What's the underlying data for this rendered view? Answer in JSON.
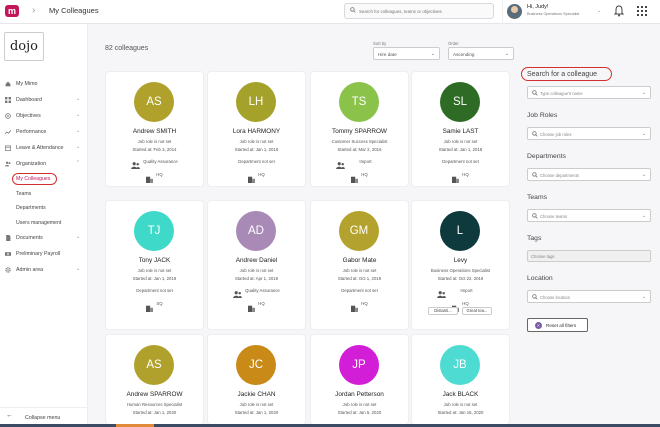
{
  "header": {
    "page_title": "My Colleagues",
    "search_placeholder": "Search for colleagues, teams or objectives",
    "greeting": "Hi, Judy!",
    "user_role": "Business Operations Specialist"
  },
  "sidebar": {
    "logo_text": "dojo",
    "items": [
      {
        "label": "My Mimo",
        "icon": "home-icon"
      },
      {
        "label": "Dashboard",
        "icon": "dashboard-icon"
      },
      {
        "label": "Objectives",
        "icon": "target-icon"
      },
      {
        "label": "Performance",
        "icon": "chart-icon"
      },
      {
        "label": "Leave & Attendance",
        "icon": "calendar-icon"
      },
      {
        "label": "Organization",
        "icon": "people-icon"
      }
    ],
    "sub_items": [
      {
        "label": "My Colleagues"
      },
      {
        "label": "Teams"
      },
      {
        "label": "Departments"
      },
      {
        "label": "Users management"
      }
    ],
    "bottom_items": [
      {
        "label": "Documents",
        "icon": "document-icon"
      },
      {
        "label": "Preliminary Payroll",
        "icon": "payroll-icon"
      },
      {
        "label": "Admin area",
        "icon": "gear-icon"
      }
    ],
    "collapse_label": "Collapse menu"
  },
  "main": {
    "count_label": "82 colleagues",
    "sort_by_label": "Sort by",
    "sort_by_value": "Hire date",
    "order_label": "Order",
    "order_value": "Ascending"
  },
  "cards": [
    {
      "initials": "AS",
      "color": "#b0a12d",
      "name": "Andrew SMITH",
      "job": "Job role is not set",
      "started": "Started at: Feb 3, 2014",
      "dept": "Quality Assurance",
      "dept_icon": true,
      "loc": "HQ"
    },
    {
      "initials": "LH",
      "color": "#a4a22a",
      "name": "Lora HARMONY",
      "job": "Job role is not set",
      "started": "Started at: Jan 1, 2016",
      "dept": "Department not set",
      "dept_icon": false,
      "loc": "HQ"
    },
    {
      "initials": "TS",
      "color": "#8bc34a",
      "name": "Tommy SPARROW",
      "job": "Customer Success Specialist",
      "started": "Started at: Mar 2, 2016",
      "dept": "Import",
      "dept_icon": true,
      "loc": "HQ"
    },
    {
      "initials": "SL",
      "color": "#2e6b24",
      "name": "Samie LAST",
      "job": "Job role is not set",
      "started": "Started at: Jan 1, 2018",
      "dept": "Department not set",
      "dept_icon": false,
      "loc": "HQ"
    },
    {
      "initials": "TJ",
      "color": "#3ed9c9",
      "name": "Tony JACK",
      "job": "Job role is not set",
      "started": "Started at: Jan 1, 2019",
      "dept": "Department not set",
      "dept_icon": false,
      "loc": "SQ"
    },
    {
      "initials": "AD",
      "color": "#a98ab6",
      "name": "Andrew Daniel",
      "job": "Job role is not set",
      "started": "Started at: Apr 1, 2019",
      "dept": "Quality Assurance",
      "dept_icon": true,
      "loc": "HQ"
    },
    {
      "initials": "GM",
      "color": "#b3a22d",
      "name": "Gabor Mate",
      "job": "Job role is not set",
      "started": "Started at: Oct 1, 2019",
      "dept": "Department not set",
      "dept_icon": false,
      "loc": "HQ"
    },
    {
      "initials": "L",
      "color": "#0f3a3d",
      "name": "Levy",
      "job": "Business Operations Specialist",
      "started": "Started at: Oct 22, 2019",
      "dept": "Import",
      "dept_icon": true,
      "loc": "HQ",
      "buttons": [
        "Distanti...",
        "Great tea..."
      ]
    },
    {
      "initials": "AS",
      "color": "#b0a12d",
      "name": "Andrew SPARROW",
      "job": "Human Resources Specialist",
      "started": "Started at: Jan 1, 2020"
    },
    {
      "initials": "JC",
      "color": "#c98a18",
      "name": "Jackie CHAN",
      "job": "Job role is not set",
      "started": "Started at: Jan 1, 2020"
    },
    {
      "initials": "JP",
      "color": "#d21ed6",
      "name": "Jordan Petterson",
      "job": "Job role is not set",
      "started": "Started at: Jan 5, 2020"
    },
    {
      "initials": "JB",
      "color": "#4edbd2",
      "name": "Jack BLACK",
      "job": "Job role is not set",
      "started": "Started at: Jan 16, 2020"
    }
  ],
  "filters": {
    "title": "Search for a colleague",
    "name_placeholder": "Type colleague's name",
    "job_roles_heading": "Job Roles",
    "job_roles_placeholder": "Choose job roles",
    "departments_heading": "Departments",
    "departments_placeholder": "Choose departments",
    "teams_heading": "Teams",
    "teams_placeholder": "Choose teams",
    "tags_heading": "Tags",
    "tags_placeholder": "Choose tags",
    "location_heading": "Location",
    "location_placeholder": "Choose location",
    "reset_label": "Reset all filters"
  }
}
